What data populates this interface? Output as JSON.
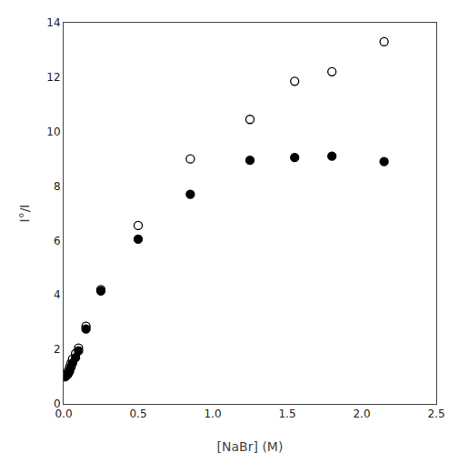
{
  "chart_data": {
    "type": "scatter",
    "xlabel": "[NaBr] (M)",
    "ylabel": "I°/I",
    "x": [
      0.01,
      0.02,
      0.03,
      0.04,
      0.05,
      0.06,
      0.08,
      0.1,
      0.15,
      0.25,
      0.5,
      0.85,
      1.25,
      1.55,
      1.8,
      2.15
    ],
    "series": [
      {
        "marker": "open",
        "color": "#000000",
        "values": [
          1.0,
          1.1,
          1.2,
          1.35,
          1.5,
          1.65,
          1.85,
          2.05,
          2.85,
          4.2,
          6.55,
          9.0,
          10.45,
          11.85,
          12.2,
          13.3
        ]
      },
      {
        "marker": "filled",
        "color": "#000000",
        "values": [
          1.0,
          1.05,
          1.1,
          1.2,
          1.35,
          1.5,
          1.7,
          1.95,
          2.75,
          4.15,
          6.05,
          7.7,
          8.95,
          9.05,
          9.1,
          8.9
        ]
      }
    ],
    "xlim": [
      0,
      2.5
    ],
    "ylim": [
      0,
      14
    ],
    "xticks": [
      {
        "value": 0.0,
        "label": "0.0"
      },
      0.5,
      {
        "value": 1.0,
        "label": "1.0"
      },
      1.5,
      {
        "value": 2.0,
        "label": "2.0"
      },
      2.5
    ],
    "yticks": [
      0,
      2,
      4,
      6,
      8,
      10,
      12,
      14
    ],
    "grid": false
  }
}
